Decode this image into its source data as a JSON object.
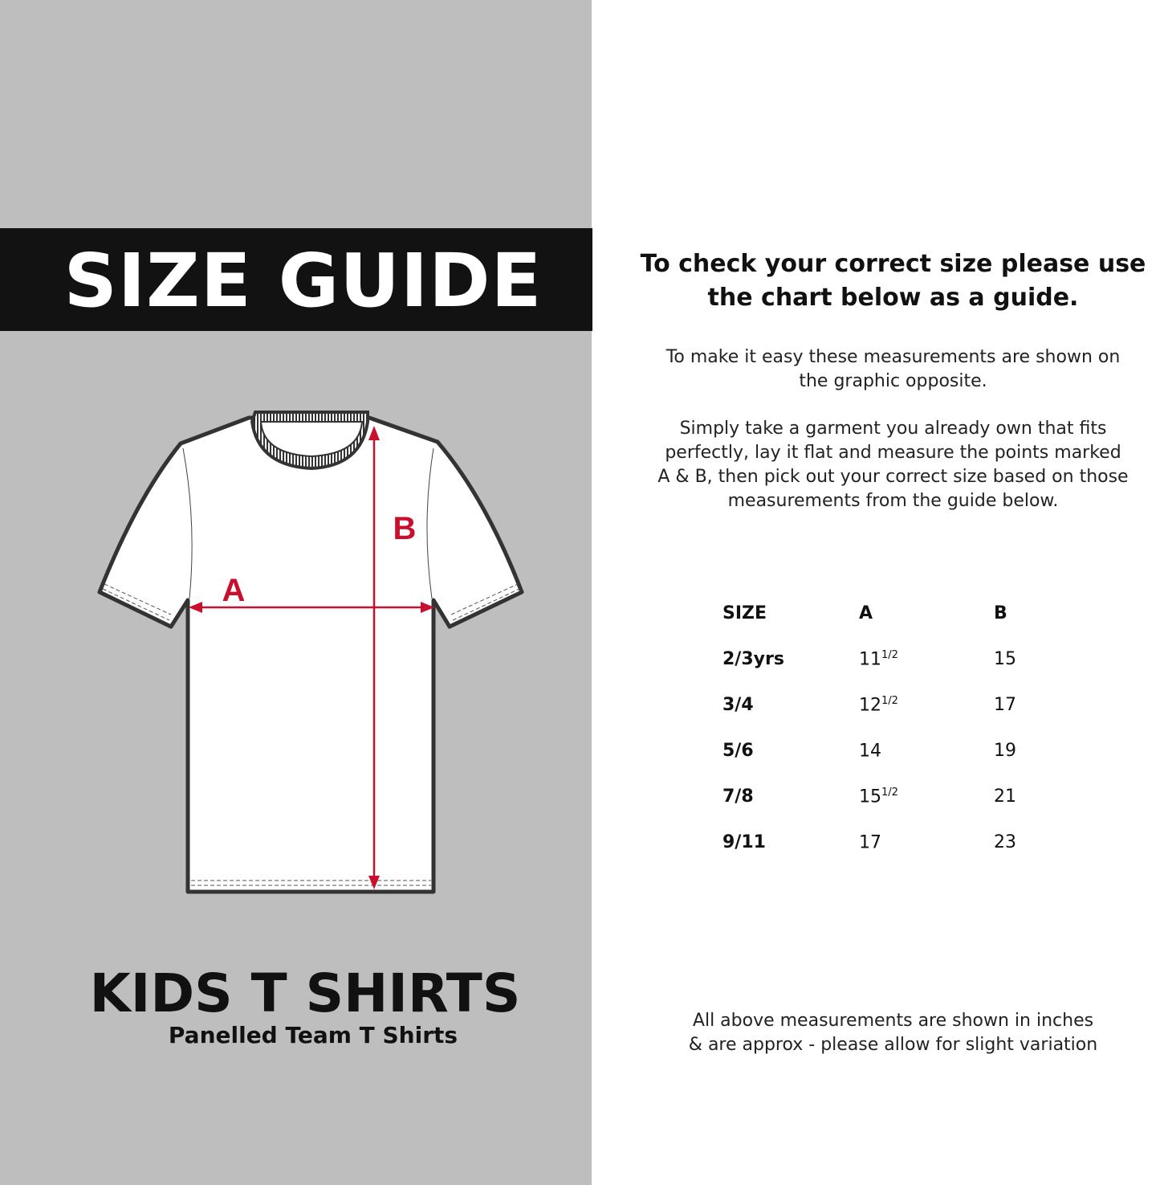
{
  "left": {
    "title": "SIZE GUIDE",
    "diagram": {
      "label_a": "A",
      "label_b": "B",
      "arrow_color": "#c8102e"
    },
    "product_title": "KIDS T SHIRTS",
    "product_subtitle": "Panelled Team T Shirts"
  },
  "right": {
    "heading_line1": "To check your correct size please use",
    "heading_line2": "the chart below as a guide.",
    "para1_line1": "To make it easy these measurements are shown on",
    "para1_line2": "the graphic opposite.",
    "para2_line1": "Simply take a garment you already own that fits",
    "para2_line2": "perfectly, lay it flat and measure the points marked",
    "para2_line3": "A & B, then pick out your correct size based on those",
    "para2_line4": "measurements from the guide below.",
    "table": {
      "headers": [
        "SIZE",
        "A",
        "B"
      ],
      "rows": [
        {
          "size": "2/3yrs",
          "a": "11",
          "a_frac": "1/2",
          "b": "15"
        },
        {
          "size": "3/4",
          "a": "12",
          "a_frac": "1/2",
          "b": "17"
        },
        {
          "size": "5/6",
          "a": "14",
          "a_frac": "",
          "b": "19"
        },
        {
          "size": "7/8",
          "a": "15",
          "a_frac": "1/2",
          "b": "21"
        },
        {
          "size": "9/11",
          "a": "17",
          "a_frac": "",
          "b": "23"
        }
      ]
    },
    "footer_line1": "All above measurements are shown in inches",
    "footer_line2": "& are approx - please allow for slight variation"
  }
}
